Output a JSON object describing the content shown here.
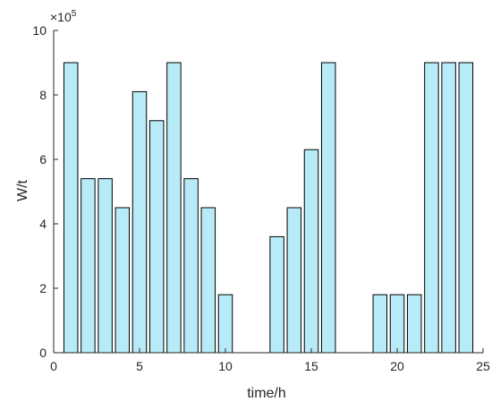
{
  "chart_data": {
    "type": "bar",
    "title": "",
    "xlabel": "time/h",
    "ylabel": "W/t",
    "exponent_label": "×10",
    "exponent_power": "5",
    "x": [
      1,
      2,
      3,
      4,
      5,
      6,
      7,
      8,
      9,
      10,
      11,
      12,
      13,
      14,
      15,
      16,
      17,
      18,
      19,
      20,
      21,
      22,
      23,
      24
    ],
    "values": [
      9,
      5.4,
      5.4,
      4.5,
      8.1,
      7.2,
      9,
      5.4,
      4.5,
      1.8,
      0,
      0,
      3.6,
      4.5,
      6.3,
      9,
      0,
      0,
      1.8,
      1.8,
      1.8,
      9,
      9,
      9
    ],
    "value_scale": "×10^5",
    "xlim": [
      0,
      25
    ],
    "ylim": [
      0,
      10
    ],
    "xticks": [
      "0",
      "5",
      "10",
      "15",
      "20",
      "25"
    ],
    "yticks": [
      "0",
      "2",
      "4",
      "6",
      "8",
      "10"
    ],
    "grid": false,
    "legend": "none",
    "bar_color": "#b8ebf8",
    "bar_edge_color": "#000000",
    "axis_color": "#262626"
  }
}
